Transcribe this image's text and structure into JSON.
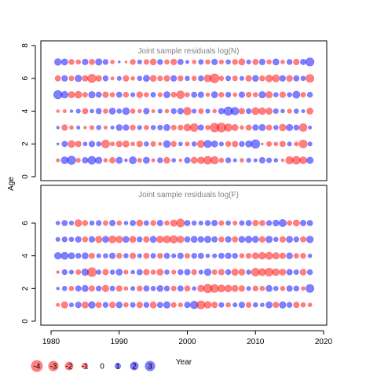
{
  "colors": {
    "positive": "#0000FF",
    "negative": "#FF0000",
    "frame": "#000000",
    "title": "#808080"
  },
  "chart_data": {
    "type": "scatter",
    "subtype": "bubble residual plot",
    "shared_ylabel": "Age",
    "shared_xlabel": "Year",
    "xlim": [
      1981,
      2018
    ],
    "x_ticks": [
      1980,
      1990,
      2000,
      2010,
      2020
    ],
    "bubble_alpha": 0.5,
    "panels": [
      {
        "title": "Joint sample residuals log(N)",
        "ylim": [
          0,
          8
        ],
        "y_ticks": [
          0,
          2,
          4,
          6,
          8
        ],
        "ages": [
          1,
          2,
          3,
          4,
          5,
          6,
          7
        ],
        "residuals": {
          "1": [
            -0.3,
            1.5,
            2.2,
            -0.5,
            1.0,
            2.0,
            1.3,
            -0.4,
            -1.0,
            1.2,
            0.2,
            1.6,
            -0.5,
            1.2,
            -0.3,
            0.8,
            -1.1,
            0.4,
            -0.2,
            1.0,
            -1.2,
            -1.4,
            -2.0,
            -1.8,
            -0.6,
            0.8,
            0.3,
            -0.4,
            0.5,
            0.3,
            1.0,
            0.7,
            0.4,
            -0.2,
            -1.8,
            -2.0,
            -1.5,
            1.3
          ],
          "2": [
            0.1,
            0.9,
            -1.5,
            -1.0,
            0.4,
            1.0,
            0.6,
            -2.0,
            -0.5,
            -1.0,
            -1.2,
            -0.4,
            -1.0,
            0.6,
            -0.7,
            -0.3,
            1.5,
            -0.8,
            0.4,
            -0.5,
            0.6,
            -1.6,
            1.7,
            1.2,
            0.5,
            -0.8,
            -1.0,
            0.8,
            1.2,
            2.3,
            -0.1,
            -0.7,
            -0.4,
            -0.9,
            0.5,
            -0.5,
            -2.0,
            0.5
          ],
          "3": [
            0.2,
            -1.0,
            -0.4,
            0.3,
            -0.2,
            -0.5,
            0.6,
            -0.3,
            0.3,
            1.1,
            1.0,
            -0.8,
            0.5,
            -0.6,
            0.6,
            0.7,
            1.2,
            -0.7,
            -0.8,
            -1.5,
            -2.0,
            0.9,
            -0.6,
            -2.5,
            -2.6,
            -1.8,
            -1.2,
            -0.4,
            -0.9,
            1.0,
            1.2,
            -0.9,
            0.6,
            -1.4,
            1.3,
            0.8,
            -1.9,
            0.3
          ],
          "4": [
            -0.2,
            -0.3,
            0.2,
            0.5,
            -0.9,
            0.4,
            0.9,
            -0.6,
            1.2,
            0.6,
            1.5,
            -0.6,
            -0.4,
            1.0,
            -0.3,
            0.5,
            -0.4,
            0.8,
            1.0,
            -1.8,
            0.5,
            -0.7,
            0.5,
            -0.4,
            1.0,
            2.3,
            1.8,
            -1.0,
            0.8,
            -1.6,
            -1.4,
            -1.3,
            0.7,
            0.4,
            -0.5,
            0.6,
            0.3,
            -1.2
          ],
          "5": [
            2.2,
            1.4,
            -1.2,
            -1.5,
            -0.7,
            1.3,
            0.9,
            -1.0,
            -0.6,
            0.9,
            -0.8,
            0.5,
            -1.1,
            -0.6,
            0.7,
            -0.5,
            1.2,
            -0.8,
            -1.9,
            -0.6,
            0.9,
            1.0,
            -0.4,
            1.2,
            -0.7,
            0.8,
            -0.4,
            1.0,
            -0.8,
            -0.6,
            1.3,
            -1.3,
            0.6,
            -1.0,
            0.6,
            1.6,
            -0.7,
            0.8
          ],
          "6": [
            -0.9,
            1.0,
            -0.7,
            1.3,
            -1.0,
            -2.2,
            -1.0,
            0.8,
            -0.3,
            0.5,
            -1.0,
            -0.4,
            0.6,
            1.2,
            -1.1,
            -0.7,
            -1.0,
            1.0,
            -0.8,
            0.6,
            -0.6,
            0.8,
            -1.6,
            -2.6,
            -0.6,
            0.7,
            -0.7,
            0.5,
            -1.0,
            1.1,
            -0.8,
            -1.5,
            -1.6,
            1.0,
            -1.1,
            0.9,
            0.6,
            -2.0
          ],
          "7": [
            1.4,
            1.2,
            -0.8,
            -0.6,
            1.0,
            -0.9,
            1.3,
            0.8,
            -0.4,
            0.1,
            -0.1,
            -0.8,
            0.5,
            -0.7,
            -1.1,
            0.8,
            -0.6,
            -1.0,
            0.9,
            0.3,
            -0.4,
            0.7,
            -0.6,
            1.0,
            -0.5,
            0.6,
            -0.8,
            -1.2,
            0.5,
            -0.9,
            1.0,
            -0.6,
            1.2,
            -0.4,
            0.8,
            -1.0,
            0.9,
            2.1
          ]
        }
      },
      {
        "title": "Joint sample residuals log(F)",
        "ylim": [
          0,
          7
        ],
        "y_ticks": [
          0,
          2,
          4,
          6
        ],
        "ages": [
          1,
          2,
          3,
          4,
          5,
          6
        ],
        "residuals": {
          "1": [
            -0.3,
            -1.3,
            0.5,
            1.0,
            -1.2,
            1.4,
            -0.9,
            0.8,
            -1.0,
            1.1,
            -0.6,
            0.7,
            -1.0,
            0.8,
            -1.2,
            0.9,
            1.3,
            -0.7,
            -0.5,
            1.0,
            1.8,
            -2.1,
            -1.5,
            -1.0,
            0.7,
            -0.6,
            0.5,
            1.0,
            -0.8,
            0.6,
            0.4,
            1.2,
            -0.9,
            1.3,
            0.8,
            -1.0,
            -0.6,
            -0.4
          ],
          "2": [
            0.2,
            0.6,
            -0.6,
            0.9,
            1.2,
            -0.9,
            0.8,
            -1.3,
            0.7,
            -1.0,
            -0.4,
            0.5,
            -0.8,
            0.9,
            0.6,
            1.1,
            0.8,
            -0.7,
            0.9,
            -0.9,
            0.4,
            -1.3,
            -2.3,
            -2.0,
            -1.6,
            -1.5,
            -1.2,
            -1.0,
            0.5,
            -0.8,
            -0.6,
            1.2,
            0.6,
            -0.6,
            1.0,
            0.8,
            -0.4,
            2.0
          ],
          "3": [
            -0.2,
            0.8,
            0.5,
            -0.7,
            1.4,
            -2.6,
            0.6,
            -1.0,
            0.6,
            1.2,
            -0.5,
            0.4,
            0.9,
            -1.0,
            -0.6,
            -1.2,
            0.6,
            -0.5,
            0.8,
            1.0,
            -0.8,
            0.5,
            1.4,
            -0.7,
            -1.0,
            0.8,
            -1.3,
            -1.2,
            0.6,
            -2.0,
            -1.6,
            -2.0,
            -1.5,
            -1.2,
            1.0,
            0.7,
            -1.1,
            0.8
          ],
          "4": [
            1.4,
            1.6,
            1.2,
            0.8,
            1.2,
            -0.9,
            0.5,
            0.6,
            1.0,
            -0.8,
            0.6,
            -1.0,
            0.5,
            -0.9,
            0.7,
            -0.8,
            0.9,
            0.5,
            1.0,
            -0.7,
            0.8,
            0.9,
            0.4,
            0.5,
            0.9,
            1.0,
            0.8,
            -0.6,
            -0.8,
            -1.2,
            -1.5,
            -1.6,
            -1.3,
            -1.0,
            1.1,
            -0.7,
            -0.8,
            0.4
          ],
          "5": [
            0.5,
            0.8,
            0.6,
            1.0,
            -0.8,
            1.0,
            -1.3,
            1.2,
            -1.6,
            -1.4,
            1.1,
            -1.2,
            0.8,
            -1.0,
            1.2,
            -1.4,
            -1.6,
            -1.8,
            -1.4,
            0.9,
            1.2,
            1.0,
            1.3,
            0.9,
            -0.8,
            1.0,
            -0.9,
            1.1,
            1.4,
            1.2,
            -1.0,
            1.3,
            0.6,
            -1.0,
            1.2,
            0.8,
            -0.9,
            1.4
          ],
          "6": [
            0.4,
            0.9,
            0.5,
            -1.5,
            -0.8,
            0.6,
            0.8,
            -0.7,
            1.0,
            -0.6,
            0.4,
            0.9,
            -1.2,
            0.7,
            -0.8,
            1.0,
            -0.6,
            -1.3,
            -2.0,
            0.9,
            0.6,
            0.5,
            0.8,
            1.0,
            -0.7,
            0.6,
            -0.5,
            0.7,
            0.9,
            -1.0,
            -0.9,
            0.8,
            1.1,
            1.6,
            -0.7,
            -1.2,
            1.0,
            0.9
          ]
        }
      }
    ],
    "legend": {
      "values": [
        "-4",
        "-3",
        "-2",
        "-1",
        "0",
        "1",
        "2",
        "3"
      ]
    }
  }
}
